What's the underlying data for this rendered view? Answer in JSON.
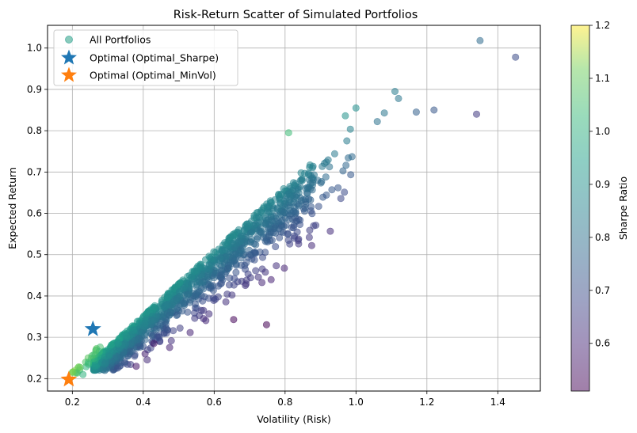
{
  "chart_data": {
    "type": "scatter",
    "title": "Risk-Return Scatter of Simulated Portfolios",
    "xlabel": "Volatility (Risk)",
    "ylabel": "Expected Return",
    "xlim": [
      0.13,
      1.52
    ],
    "ylim": [
      0.17,
      1.055
    ],
    "xticks": [
      "0.2",
      "0.4",
      "0.6",
      "0.8",
      "1.0",
      "1.2",
      "1.4"
    ],
    "yticks": [
      "0.2",
      "0.3",
      "0.4",
      "0.5",
      "0.6",
      "0.7",
      "0.8",
      "0.9",
      "1.0"
    ],
    "grid": true,
    "legend_placement": "top-left",
    "colorbar": {
      "label": "Sharpe Ratio",
      "range": [
        0.51,
        1.2
      ],
      "ticks": [
        "0.6",
        "0.7",
        "0.8",
        "0.9",
        "1.0",
        "1.1",
        "1.2"
      ],
      "colormap": "viridis",
      "alpha": 0.5
    },
    "series": [
      {
        "name": "All Portfolios",
        "marker": "circle",
        "note_count": 1500,
        "points_sample": [
          {
            "x": 1.35,
            "y": 1.018,
            "sharpe": 0.75
          },
          {
            "x": 1.45,
            "y": 0.978,
            "sharpe": 0.67
          },
          {
            "x": 1.34,
            "y": 0.84,
            "sharpe": 0.63
          },
          {
            "x": 1.22,
            "y": 0.85,
            "sharpe": 0.7
          },
          {
            "x": 1.17,
            "y": 0.845,
            "sharpe": 0.72
          },
          {
            "x": 1.11,
            "y": 0.895,
            "sharpe": 0.8
          },
          {
            "x": 1.12,
            "y": 0.878,
            "sharpe": 0.78
          },
          {
            "x": 1.08,
            "y": 0.843,
            "sharpe": 0.78
          },
          {
            "x": 1.06,
            "y": 0.822,
            "sharpe": 0.77
          },
          {
            "x": 1.0,
            "y": 0.855,
            "sharpe": 0.85
          },
          {
            "x": 0.97,
            "y": 0.836,
            "sharpe": 0.86
          },
          {
            "x": 0.81,
            "y": 0.795,
            "sharpe": 0.98
          },
          {
            "x": 0.83,
            "y": 0.58,
            "sharpe": 0.7
          },
          {
            "x": 0.655,
            "y": 0.343,
            "sharpe": 0.52
          },
          {
            "x": 0.57,
            "y": 0.365,
            "sharpe": 0.62
          },
          {
            "x": 0.57,
            "y": 0.345,
            "sharpe": 0.6
          },
          {
            "x": 0.38,
            "y": 0.23,
            "sharpe": 0.55
          },
          {
            "x": 0.43,
            "y": 0.285,
            "sharpe": 0.55
          },
          {
            "x": 0.405,
            "y": 0.26,
            "sharpe": 0.58
          },
          {
            "x": 0.2,
            "y": 0.215,
            "sharpe": 1.05
          },
          {
            "x": 0.23,
            "y": 0.21,
            "sharpe": 0.95
          }
        ]
      },
      {
        "name": "Optimal (Optimal_Sharpe)",
        "marker": "star",
        "color": "#1f77b4",
        "x": 0.258,
        "y": 0.32
      },
      {
        "name": "Optimal (Optimal_MinVol)",
        "marker": "star",
        "color": "#ff7f0e",
        "x": 0.19,
        "y": 0.198
      }
    ]
  }
}
